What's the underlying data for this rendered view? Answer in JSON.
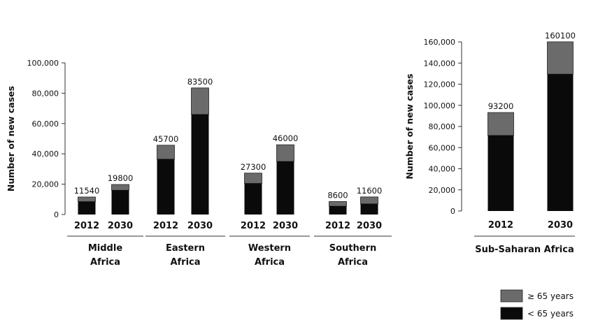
{
  "chart_data": [
    {
      "type": "bar",
      "stacked": true,
      "ylabel": "Number of new cases",
      "ylim": [
        0,
        100000
      ],
      "yticks": [
        0,
        20000,
        40000,
        60000,
        80000,
        100000
      ],
      "ytick_labels": [
        "0",
        "20,000",
        "40,000",
        "60,000",
        "80,000",
        "100,000"
      ],
      "groups": [
        {
          "name": "Middle Africa",
          "lines": [
            "Middle",
            "Africa"
          ],
          "bars": [
            {
              "year": "2012",
              "total": 11540,
              "under65": 8500,
              "label": "11540"
            },
            {
              "year": "2030",
              "total": 19800,
              "under65": 16000,
              "label": "19800"
            }
          ]
        },
        {
          "name": "Eastern Africa",
          "lines": [
            "Eastern",
            "Africa"
          ],
          "bars": [
            {
              "year": "2012",
              "total": 45700,
              "under65": 36500,
              "label": "45700"
            },
            {
              "year": "2030",
              "total": 83500,
              "under65": 66000,
              "label": "83500"
            }
          ]
        },
        {
          "name": "Western Africa",
          "lines": [
            "Western",
            "Africa"
          ],
          "bars": [
            {
              "year": "2012",
              "total": 27300,
              "under65": 20500,
              "label": "27300"
            },
            {
              "year": "2030",
              "total": 46000,
              "under65": 35000,
              "label": "46000"
            }
          ]
        },
        {
          "name": "Southern Africa",
          "lines": [
            "Southern",
            "Africa"
          ],
          "bars": [
            {
              "year": "2012",
              "total": 8600,
              "under65": 5500,
              "label": "8600"
            },
            {
              "year": "2030",
              "total": 11600,
              "under65": 7000,
              "label": "11600"
            }
          ]
        }
      ]
    },
    {
      "type": "bar",
      "stacked": true,
      "ylabel": "Number of new cases",
      "ylim": [
        0,
        160000
      ],
      "yticks": [
        0,
        20000,
        40000,
        60000,
        80000,
        100000,
        120000,
        140000,
        160000
      ],
      "ytick_labels": [
        "0",
        "20,000",
        "40,000",
        "60,000",
        "80,000",
        "100,000",
        "120,000",
        "140,000",
        "160,000"
      ],
      "groups": [
        {
          "name": "Sub-Saharan Africa",
          "lines": [
            "Sub-Saharan Africa"
          ],
          "bars": [
            {
              "year": "2012",
              "total": 93200,
              "under65": 71500,
              "label": "93200"
            },
            {
              "year": "2030",
              "total": 160100,
              "under65": 129500,
              "label": "160100"
            }
          ]
        }
      ]
    }
  ],
  "legend": {
    "items": [
      {
        "label": "≥ 65 years",
        "color": "#6b6b6b"
      },
      {
        "label": "< 65 years",
        "color": "#0a0a0a"
      }
    ]
  },
  "colors": {
    "over65": "#6b6b6b",
    "under65": "#0a0a0a",
    "axis": "#333333"
  }
}
